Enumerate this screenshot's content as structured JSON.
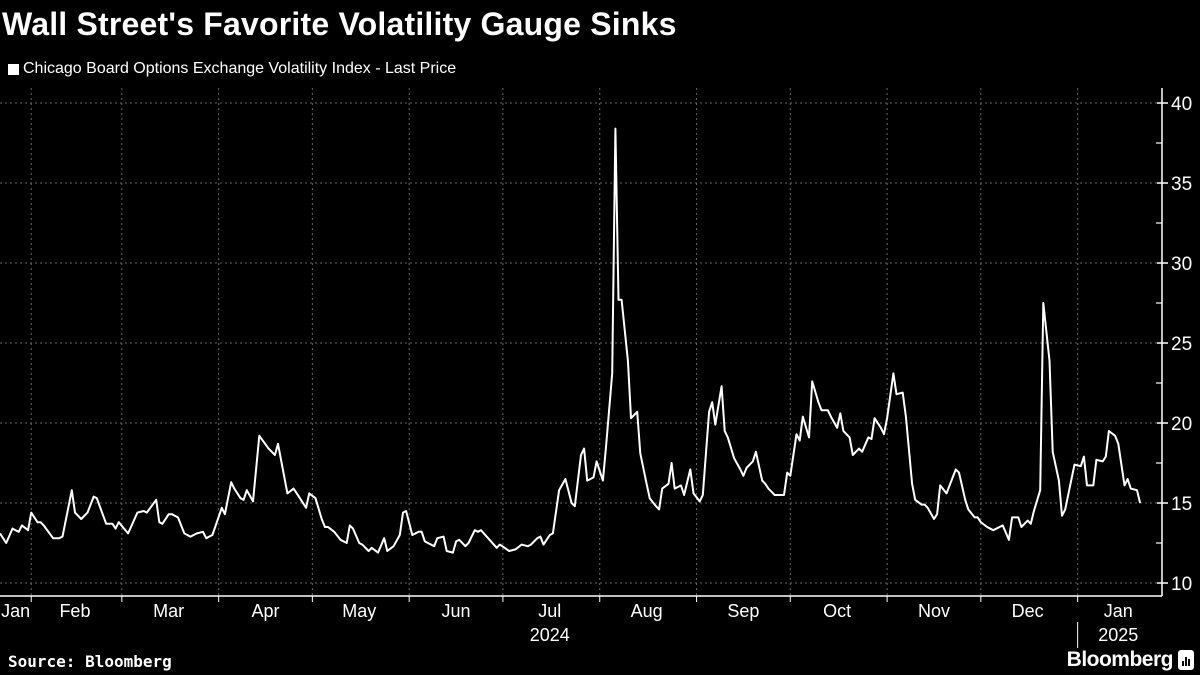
{
  "title": "Wall Street's Favorite Volatility Gauge Sinks",
  "source": "Source: Bloomberg",
  "logo": "Bloomberg",
  "colors": {
    "background": "#000000",
    "line": "#ffffff",
    "grid": "#666666"
  },
  "chart_data": {
    "type": "line",
    "title": "Wall Street's Favorite Volatility Gauge Sinks",
    "legend_position": "top-left",
    "grid": true,
    "ylim": [
      10,
      40
    ],
    "yticks": [
      "10",
      "15",
      "20",
      "25",
      "30",
      "35",
      "40"
    ],
    "y_axis_side": "right",
    "xlim": [
      "2024-01-22",
      "2025-01-28"
    ],
    "month_labels": [
      {
        "label": "Jan",
        "date": "2024-01-27"
      },
      {
        "label": "Feb",
        "date": "2024-02-15"
      },
      {
        "label": "Mar",
        "date": "2024-03-16"
      },
      {
        "label": "Apr",
        "date": "2024-04-16"
      },
      {
        "label": "May",
        "date": "2024-05-16"
      },
      {
        "label": "Jun",
        "date": "2024-06-16"
      },
      {
        "label": "Jul",
        "date": "2024-07-16"
      },
      {
        "label": "Aug",
        "date": "2024-08-16"
      },
      {
        "label": "Sep",
        "date": "2024-09-16"
      },
      {
        "label": "Oct",
        "date": "2024-10-16"
      },
      {
        "label": "Nov",
        "date": "2024-11-16"
      },
      {
        "label": "Dec",
        "date": "2024-12-16"
      },
      {
        "label": "Jan",
        "date": "2025-01-14"
      }
    ],
    "month_boundaries": [
      "2024-02-01",
      "2024-03-01",
      "2024-04-01",
      "2024-05-01",
      "2024-06-01",
      "2024-07-01",
      "2024-08-01",
      "2024-09-01",
      "2024-10-01",
      "2024-11-01",
      "2024-12-01",
      "2025-01-01"
    ],
    "year_labels": [
      {
        "label": "2024",
        "date": "2024-07-16"
      },
      {
        "label": "2025",
        "date": "2025-01-14"
      }
    ],
    "series": [
      {
        "name": "Chicago Board Options Exchange Volatility Index - Last Price",
        "points": [
          [
            "2024-01-22",
            13.1
          ],
          [
            "2024-01-24",
            12.5
          ],
          [
            "2024-01-26",
            13.4
          ],
          [
            "2024-01-28",
            13.2
          ],
          [
            "2024-01-29",
            13.6
          ],
          [
            "2024-01-31",
            13.3
          ],
          [
            "2024-02-01",
            14.4
          ],
          [
            "2024-02-03",
            13.8
          ],
          [
            "2024-02-04",
            13.8
          ],
          [
            "2024-02-05",
            13.6
          ],
          [
            "2024-02-08",
            12.8
          ],
          [
            "2024-02-10",
            12.8
          ],
          [
            "2024-02-11",
            12.9
          ],
          [
            "2024-02-14",
            15.8
          ],
          [
            "2024-02-15",
            14.4
          ],
          [
            "2024-02-17",
            14.0
          ],
          [
            "2024-02-19",
            14.4
          ],
          [
            "2024-02-21",
            15.4
          ],
          [
            "2024-02-22",
            15.3
          ],
          [
            "2024-02-25",
            13.7
          ],
          [
            "2024-02-27",
            13.7
          ],
          [
            "2024-02-28",
            13.4
          ],
          [
            "2024-02-29",
            13.8
          ],
          [
            "2024-03-03",
            13.1
          ],
          [
            "2024-03-06",
            14.4
          ],
          [
            "2024-03-08",
            14.5
          ],
          [
            "2024-03-09",
            14.4
          ],
          [
            "2024-03-12",
            15.2
          ],
          [
            "2024-03-13",
            13.8
          ],
          [
            "2024-03-14",
            13.7
          ],
          [
            "2024-03-16",
            14.3
          ],
          [
            "2024-03-17",
            14.3
          ],
          [
            "2024-03-19",
            14.1
          ],
          [
            "2024-03-21",
            13.1
          ],
          [
            "2024-03-23",
            12.9
          ],
          [
            "2024-03-25",
            13.1
          ],
          [
            "2024-03-27",
            13.2
          ],
          [
            "2024-03-28",
            12.8
          ],
          [
            "2024-03-30",
            13.0
          ],
          [
            "2024-04-02",
            14.7
          ],
          [
            "2024-04-03",
            14.3
          ],
          [
            "2024-04-05",
            16.3
          ],
          [
            "2024-04-06",
            15.9
          ],
          [
            "2024-04-08",
            15.3
          ],
          [
            "2024-04-09",
            15.2
          ],
          [
            "2024-04-10",
            15.8
          ],
          [
            "2024-04-12",
            15.1
          ],
          [
            "2024-04-14",
            19.2
          ],
          [
            "2024-04-17",
            18.4
          ],
          [
            "2024-04-19",
            18.0
          ],
          [
            "2024-04-20",
            18.7
          ],
          [
            "2024-04-23",
            15.6
          ],
          [
            "2024-04-25",
            15.9
          ],
          [
            "2024-04-27",
            15.3
          ],
          [
            "2024-04-29",
            14.7
          ],
          [
            "2024-04-30",
            15.6
          ],
          [
            "2024-05-02",
            15.3
          ],
          [
            "2024-05-04",
            14.0
          ],
          [
            "2024-05-05",
            13.5
          ],
          [
            "2024-05-06",
            13.5
          ],
          [
            "2024-05-08",
            13.2
          ],
          [
            "2024-05-10",
            12.7
          ],
          [
            "2024-05-12",
            12.5
          ],
          [
            "2024-05-13",
            13.6
          ],
          [
            "2024-05-14",
            13.4
          ],
          [
            "2024-05-16",
            12.5
          ],
          [
            "2024-05-17",
            12.4
          ],
          [
            "2024-05-19",
            12.0
          ],
          [
            "2024-05-20",
            12.2
          ],
          [
            "2024-05-22",
            11.9
          ],
          [
            "2024-05-24",
            12.8
          ],
          [
            "2024-05-25",
            12.0
          ],
          [
            "2024-05-27",
            12.3
          ],
          [
            "2024-05-29",
            13.0
          ],
          [
            "2024-05-30",
            14.4
          ],
          [
            "2024-05-31",
            14.5
          ],
          [
            "2024-06-02",
            13.0
          ],
          [
            "2024-06-04",
            13.2
          ],
          [
            "2024-06-05",
            13.2
          ],
          [
            "2024-06-06",
            12.6
          ],
          [
            "2024-06-07",
            12.5
          ],
          [
            "2024-06-09",
            12.3
          ],
          [
            "2024-06-10",
            12.8
          ],
          [
            "2024-06-12",
            12.9
          ],
          [
            "2024-06-13",
            12.0
          ],
          [
            "2024-06-15",
            11.9
          ],
          [
            "2024-06-16",
            12.6
          ],
          [
            "2024-06-17",
            12.7
          ],
          [
            "2024-06-19",
            12.3
          ],
          [
            "2024-06-20",
            12.5
          ],
          [
            "2024-06-22",
            13.3
          ],
          [
            "2024-06-23",
            13.2
          ],
          [
            "2024-06-24",
            13.3
          ],
          [
            "2024-06-29",
            12.2
          ],
          [
            "2024-06-30",
            12.4
          ],
          [
            "2024-07-03",
            12.0
          ],
          [
            "2024-07-05",
            12.1
          ],
          [
            "2024-07-07",
            12.4
          ],
          [
            "2024-07-09",
            12.3
          ],
          [
            "2024-07-10",
            12.4
          ],
          [
            "2024-07-12",
            12.8
          ],
          [
            "2024-07-13",
            12.9
          ],
          [
            "2024-07-14",
            12.4
          ],
          [
            "2024-07-16",
            13.0
          ],
          [
            "2024-07-17",
            13.1
          ],
          [
            "2024-07-19",
            15.8
          ],
          [
            "2024-07-21",
            16.5
          ],
          [
            "2024-07-23",
            15.0
          ],
          [
            "2024-07-24",
            14.8
          ],
          [
            "2024-07-26",
            18.0
          ],
          [
            "2024-07-27",
            18.4
          ],
          [
            "2024-07-28",
            16.4
          ],
          [
            "2024-07-30",
            16.6
          ],
          [
            "2024-07-31",
            17.6
          ],
          [
            "2024-08-02",
            16.4
          ],
          [
            "2024-08-03",
            18.5
          ],
          [
            "2024-08-05",
            23.1
          ],
          [
            "2024-08-06",
            38.4
          ],
          [
            "2024-08-07",
            27.7
          ],
          [
            "2024-08-08",
            27.7
          ],
          [
            "2024-08-10",
            23.9
          ],
          [
            "2024-08-11",
            20.3
          ],
          [
            "2024-08-13",
            20.7
          ],
          [
            "2024-08-14",
            18.1
          ],
          [
            "2024-08-16",
            16.2
          ],
          [
            "2024-08-17",
            15.3
          ],
          [
            "2024-08-19",
            14.8
          ],
          [
            "2024-08-20",
            14.6
          ],
          [
            "2024-08-21",
            15.9
          ],
          [
            "2024-08-23",
            16.2
          ],
          [
            "2024-08-24",
            17.5
          ],
          [
            "2024-08-25",
            15.9
          ],
          [
            "2024-08-27",
            16.1
          ],
          [
            "2024-08-28",
            15.5
          ],
          [
            "2024-08-30",
            17.1
          ],
          [
            "2024-08-31",
            15.6
          ],
          [
            "2024-09-02",
            15.1
          ],
          [
            "2024-09-03",
            15.5
          ],
          [
            "2024-09-05",
            20.7
          ],
          [
            "2024-09-06",
            21.3
          ],
          [
            "2024-09-07",
            19.9
          ],
          [
            "2024-09-09",
            22.3
          ],
          [
            "2024-09-10",
            19.5
          ],
          [
            "2024-09-11",
            19.1
          ],
          [
            "2024-09-13",
            17.8
          ],
          [
            "2024-09-15",
            17.1
          ],
          [
            "2024-09-16",
            16.7
          ],
          [
            "2024-09-17",
            17.2
          ],
          [
            "2024-09-19",
            17.6
          ],
          [
            "2024-09-20",
            18.2
          ],
          [
            "2024-09-22",
            16.4
          ],
          [
            "2024-09-23",
            16.2
          ],
          [
            "2024-09-24",
            15.9
          ],
          [
            "2024-09-26",
            15.5
          ],
          [
            "2024-09-29",
            15.5
          ],
          [
            "2024-09-30",
            16.9
          ],
          [
            "2024-10-01",
            16.7
          ],
          [
            "2024-10-03",
            19.3
          ],
          [
            "2024-10-04",
            18.9
          ],
          [
            "2024-10-05",
            20.4
          ],
          [
            "2024-10-07",
            19.1
          ],
          [
            "2024-10-08",
            22.6
          ],
          [
            "2024-10-10",
            21.3
          ],
          [
            "2024-10-11",
            20.8
          ],
          [
            "2024-10-13",
            20.8
          ],
          [
            "2024-10-14",
            20.4
          ],
          [
            "2024-10-16",
            19.7
          ],
          [
            "2024-10-17",
            20.6
          ],
          [
            "2024-10-18",
            19.5
          ],
          [
            "2024-10-20",
            19.1
          ],
          [
            "2024-10-21",
            18.0
          ],
          [
            "2024-10-23",
            18.4
          ],
          [
            "2024-10-24",
            18.2
          ],
          [
            "2024-10-26",
            19.1
          ],
          [
            "2024-10-27",
            19.0
          ],
          [
            "2024-10-28",
            20.3
          ],
          [
            "2024-10-30",
            19.7
          ],
          [
            "2024-10-31",
            19.3
          ],
          [
            "2024-11-01",
            20.3
          ],
          [
            "2024-11-03",
            23.1
          ],
          [
            "2024-11-04",
            21.8
          ],
          [
            "2024-11-06",
            21.9
          ],
          [
            "2024-11-07",
            20.4
          ],
          [
            "2024-11-09",
            16.2
          ],
          [
            "2024-11-10",
            15.2
          ],
          [
            "2024-11-12",
            14.9
          ],
          [
            "2024-11-13",
            14.9
          ],
          [
            "2024-11-14",
            14.7
          ],
          [
            "2024-11-16",
            14.0
          ],
          [
            "2024-11-17",
            14.3
          ],
          [
            "2024-11-18",
            16.1
          ],
          [
            "2024-11-20",
            15.6
          ],
          [
            "2024-11-23",
            17.1
          ],
          [
            "2024-11-24",
            16.9
          ],
          [
            "2024-11-26",
            15.2
          ],
          [
            "2024-11-27",
            14.6
          ],
          [
            "2024-11-29",
            14.1
          ],
          [
            "2024-11-30",
            14.1
          ],
          [
            "2024-12-01",
            13.8
          ],
          [
            "2024-12-03",
            13.5
          ],
          [
            "2024-12-05",
            13.3
          ],
          [
            "2024-12-08",
            13.6
          ],
          [
            "2024-12-10",
            12.7
          ],
          [
            "2024-12-11",
            14.1
          ],
          [
            "2024-12-13",
            14.1
          ],
          [
            "2024-12-14",
            13.5
          ],
          [
            "2024-12-16",
            13.9
          ],
          [
            "2024-12-17",
            13.7
          ],
          [
            "2024-12-18",
            14.5
          ],
          [
            "2024-12-20",
            15.8
          ],
          [
            "2024-12-21",
            27.5
          ],
          [
            "2024-12-23",
            23.9
          ],
          [
            "2024-12-24",
            18.2
          ],
          [
            "2024-12-26",
            16.4
          ],
          [
            "2024-12-27",
            14.2
          ],
          [
            "2024-12-28",
            14.6
          ],
          [
            "2024-12-31",
            17.4
          ],
          [
            "2025-01-02",
            17.3
          ],
          [
            "2025-01-03",
            17.9
          ],
          [
            "2025-01-04",
            16.1
          ],
          [
            "2025-01-06",
            16.1
          ],
          [
            "2025-01-07",
            17.7
          ],
          [
            "2025-01-09",
            17.6
          ],
          [
            "2025-01-10",
            17.9
          ],
          [
            "2025-01-11",
            19.5
          ],
          [
            "2025-01-13",
            19.2
          ],
          [
            "2025-01-14",
            18.7
          ],
          [
            "2025-01-16",
            16.1
          ],
          [
            "2025-01-17",
            16.5
          ],
          [
            "2025-01-18",
            15.9
          ],
          [
            "2025-01-20",
            15.8
          ],
          [
            "2025-01-21",
            15.0
          ]
        ]
      }
    ]
  }
}
